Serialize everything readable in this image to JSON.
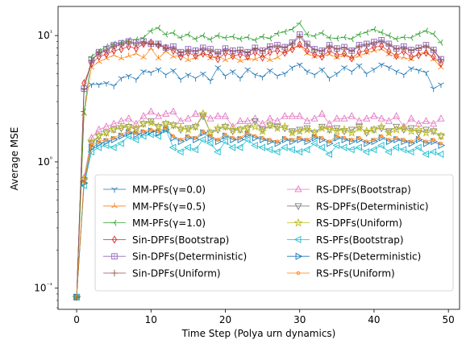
{
  "chart_data": {
    "type": "line",
    "title": "",
    "xlabel": "Time Step (Polya urn dynamics)",
    "ylabel": "Average MSE",
    "xlim": [
      -2.5,
      51.5
    ],
    "ylim": [
      0.068,
      17
    ],
    "yscale": "log",
    "grid": false,
    "legend_position": "lower-right",
    "x_ticks": [
      0,
      10,
      20,
      30,
      40,
      50
    ],
    "x_tick_labels": [
      "0",
      "10",
      "20",
      "30",
      "40",
      "50"
    ],
    "y_ticks": [
      0.1,
      1,
      10
    ],
    "y_tick_labels": [
      "10⁻¹",
      "10⁰",
      "10¹"
    ],
    "x": [
      0,
      1,
      2,
      3,
      4,
      5,
      6,
      7,
      8,
      9,
      10,
      11,
      12,
      13,
      14,
      15,
      16,
      17,
      18,
      19,
      20,
      21,
      22,
      23,
      24,
      25,
      26,
      27,
      28,
      29,
      30,
      31,
      32,
      33,
      34,
      35,
      36,
      37,
      38,
      39,
      40,
      41,
      42,
      43,
      44,
      45,
      46,
      47,
      48,
      49
    ],
    "series": [
      {
        "name": "MM-PFs(γ=0.0)",
        "color": "#1f77b4",
        "marker": "tri_down",
        "values": [
          0.085,
          3.7,
          4.1,
          4.1,
          4.2,
          4.0,
          4.6,
          4.8,
          4.5,
          5.2,
          5.1,
          5.4,
          4.9,
          5.3,
          4.5,
          4.9,
          4.6,
          5.0,
          4.4,
          5.6,
          4.8,
          5.2,
          4.6,
          5.4,
          4.9,
          4.7,
          5.3,
          4.8,
          5.0,
          5.6,
          5.9,
          5.2,
          4.9,
          5.4,
          4.6,
          5.0,
          5.6,
          5.2,
          5.8,
          5.0,
          5.4,
          5.9,
          5.6,
          5.2,
          4.9,
          5.5,
          5.3,
          5.1,
          3.8,
          4.1
        ]
      },
      {
        "name": "MM-PFs(γ=0.5)",
        "color": "#ff7f0e",
        "marker": "tri_up",
        "values": [
          0.085,
          2.4,
          5.6,
          6.2,
          6.6,
          7.0,
          6.6,
          6.9,
          7.2,
          6.7,
          7.9,
          6.6,
          7.5,
          6.8,
          7.0,
          6.4,
          6.7,
          7.2,
          6.6,
          6.9,
          6.4,
          6.8,
          6.3,
          6.6,
          6.5,
          6.9,
          6.4,
          6.7,
          7.4,
          8.0,
          8.3,
          7.2,
          6.8,
          6.9,
          7.1,
          6.7,
          7.0,
          6.6,
          6.9,
          7.3,
          7.6,
          7.8,
          7.1,
          6.8,
          6.7,
          6.5,
          7.2,
          7.4,
          6.5,
          5.6
        ]
      },
      {
        "name": "MM-PFs(γ=1.0)",
        "color": "#2ca02c",
        "marker": "tri_left",
        "values": [
          0.085,
          2.5,
          6.8,
          7.5,
          8.2,
          8.6,
          8.8,
          9.2,
          9.3,
          9.6,
          10.9,
          11.5,
          10.2,
          10.5,
          9.6,
          10.2,
          9.4,
          10.0,
          9.3,
          10.0,
          9.6,
          9.8,
          9.4,
          9.7,
          9.2,
          9.8,
          9.5,
          10.4,
          10.7,
          11.2,
          12.5,
          10.2,
          9.9,
          10.5,
          9.6,
          9.5,
          9.7,
          9.4,
          10.2,
          10.6,
          11.2,
          10.6,
          10.0,
          9.4,
          9.7,
          9.6,
          10.3,
          10.9,
          10.3,
          8.8
        ]
      },
      {
        "name": "Sin-DPFs(Bootstrap)",
        "color": "#d62728",
        "marker": "thin_diamond",
        "values": [
          0.085,
          4.2,
          6.0,
          6.8,
          7.1,
          7.6,
          7.8,
          8.2,
          7.9,
          8.6,
          8.8,
          8.4,
          8.0,
          7.6,
          6.8,
          7.3,
          6.9,
          7.2,
          7.0,
          6.5,
          7.3,
          6.9,
          7.1,
          6.8,
          7.4,
          6.7,
          7.4,
          7.6,
          7.3,
          7.8,
          8.5,
          7.6,
          7.1,
          6.8,
          7.6,
          7.0,
          7.2,
          6.6,
          7.4,
          7.6,
          8.1,
          8.3,
          7.5,
          6.9,
          7.5,
          6.8,
          7.0,
          7.3,
          6.8,
          6.0
        ]
      },
      {
        "name": "Sin-DPFs(Deterministic)",
        "color": "#9467bd",
        "marker": "square",
        "values": [
          0.085,
          3.8,
          6.4,
          7.4,
          7.8,
          8.4,
          8.7,
          9.0,
          8.8,
          9.0,
          8.6,
          8.6,
          8.0,
          8.2,
          7.4,
          7.8,
          7.6,
          8.0,
          7.8,
          7.4,
          7.9,
          7.6,
          7.7,
          7.4,
          8.0,
          7.6,
          8.2,
          8.4,
          8.1,
          8.8,
          10.2,
          8.6,
          7.8,
          7.6,
          8.4,
          7.9,
          8.1,
          7.6,
          8.4,
          8.6,
          8.9,
          9.2,
          8.6,
          7.9,
          8.2,
          7.7,
          8.0,
          8.4,
          7.7,
          6.5
        ]
      },
      {
        "name": "Sin-DPFs(Uniform)",
        "color": "#8c564b",
        "marker": "plus",
        "values": [
          0.085,
          3.8,
          6.3,
          7.3,
          7.6,
          8.2,
          8.5,
          8.8,
          8.6,
          8.8,
          8.5,
          8.5,
          7.9,
          8.0,
          7.3,
          7.6,
          7.5,
          7.8,
          7.6,
          7.2,
          7.7,
          7.5,
          7.6,
          7.3,
          7.9,
          7.5,
          8.1,
          8.2,
          8.0,
          8.6,
          9.8,
          8.4,
          7.7,
          7.5,
          8.2,
          7.8,
          8.0,
          7.5,
          8.2,
          8.4,
          8.7,
          9.0,
          8.4,
          7.8,
          8.0,
          7.6,
          7.9,
          8.2,
          7.6,
          6.4
        ]
      },
      {
        "name": "RS-DPFs(Bootstrap)",
        "color": "#e377c2",
        "marker": "triangle_up",
        "values": [
          0.085,
          0.75,
          1.55,
          1.8,
          1.9,
          2.0,
          2.1,
          2.2,
          2.0,
          2.3,
          2.5,
          2.3,
          2.4,
          2.5,
          2.1,
          2.2,
          2.4,
          2.4,
          2.2,
          2.3,
          2.3,
          1.9,
          2.1,
          2.1,
          2.2,
          2.0,
          2.2,
          2.1,
          2.3,
          2.3,
          2.3,
          2.1,
          2.2,
          2.4,
          2.0,
          2.2,
          2.2,
          2.3,
          2.1,
          2.2,
          2.3,
          2.2,
          2.1,
          2.3,
          1.9,
          2.2,
          2.0,
          2.1,
          2.0,
          2.2
        ]
      },
      {
        "name": "RS-DPFs(Deterministic)",
        "color": "#7f7f7f",
        "marker": "triangle_down",
        "values": [
          0.085,
          0.72,
          1.4,
          1.6,
          1.7,
          1.8,
          1.85,
          1.9,
          1.8,
          2.0,
          2.1,
          1.9,
          2.0,
          1.95,
          1.8,
          1.85,
          1.9,
          2.3,
          1.7,
          1.8,
          1.9,
          1.75,
          1.8,
          1.85,
          2.1,
          1.8,
          1.95,
          1.9,
          1.85,
          1.75,
          1.8,
          1.85,
          1.7,
          1.9,
          1.8,
          1.85,
          1.75,
          1.8,
          1.9,
          1.7,
          1.8,
          1.85,
          1.75,
          1.9,
          1.8,
          1.85,
          1.7,
          1.8,
          1.75,
          1.6
        ]
      },
      {
        "name": "RS-DPFs(Uniform)",
        "color": "#bcbd22",
        "marker": "star",
        "values": [
          0.085,
          0.72,
          1.45,
          1.6,
          1.7,
          1.8,
          1.9,
          1.9,
          1.85,
          2.0,
          2.05,
          1.9,
          2.0,
          1.95,
          1.85,
          1.8,
          1.9,
          2.4,
          1.7,
          1.85,
          1.9,
          1.8,
          1.8,
          1.85,
          1.9,
          1.75,
          1.95,
          1.85,
          1.9,
          1.7,
          1.75,
          1.8,
          1.7,
          1.85,
          1.8,
          1.75,
          1.8,
          1.7,
          1.85,
          1.75,
          1.8,
          1.9,
          1.7,
          1.8,
          1.85,
          1.75,
          1.8,
          1.7,
          1.75,
          1.6
        ]
      },
      {
        "name": "RS-PFs(Bootstrap)",
        "color": "#17becf",
        "marker": "triangle_left",
        "values": [
          0.085,
          0.65,
          1.2,
          1.3,
          1.35,
          1.3,
          1.4,
          1.6,
          1.5,
          1.6,
          1.65,
          1.6,
          1.8,
          1.3,
          1.2,
          1.3,
          1.25,
          1.5,
          1.4,
          1.2,
          1.45,
          1.3,
          1.3,
          1.5,
          1.35,
          1.3,
          1.25,
          1.2,
          1.3,
          1.25,
          1.2,
          1.25,
          1.4,
          1.3,
          1.15,
          1.35,
          1.3,
          1.25,
          1.3,
          1.2,
          1.25,
          1.35,
          1.2,
          1.3,
          1.25,
          1.2,
          1.3,
          1.15,
          1.2,
          1.15
        ]
      },
      {
        "name": "RS-PFs(Deterministic)",
        "color": "#1f77b4",
        "marker": "triangle_right",
        "values": [
          0.085,
          0.68,
          1.3,
          1.4,
          1.45,
          1.5,
          1.6,
          1.7,
          1.65,
          1.7,
          1.75,
          1.7,
          1.8,
          1.55,
          1.45,
          1.55,
          1.5,
          1.7,
          1.55,
          1.45,
          1.6,
          1.5,
          1.5,
          1.65,
          1.55,
          1.5,
          1.45,
          1.4,
          1.5,
          1.45,
          1.5,
          1.45,
          1.55,
          1.5,
          1.4,
          1.55,
          1.5,
          1.45,
          1.5,
          1.4,
          1.45,
          1.55,
          1.45,
          1.5,
          1.45,
          1.4,
          1.5,
          1.4,
          1.45,
          1.35
        ]
      },
      {
        "name": "RS-PFs(Uniform)",
        "color": "#ff7f0e",
        "marker": "point",
        "values": [
          0.085,
          0.7,
          1.35,
          1.45,
          1.5,
          1.55,
          1.65,
          1.75,
          1.7,
          1.75,
          1.8,
          1.75,
          1.85,
          1.6,
          1.5,
          1.6,
          1.55,
          1.75,
          1.6,
          1.5,
          1.65,
          1.55,
          1.55,
          1.7,
          1.6,
          1.55,
          1.5,
          1.45,
          1.55,
          1.5,
          1.55,
          1.5,
          1.6,
          1.55,
          1.45,
          1.6,
          1.55,
          1.5,
          1.55,
          1.45,
          1.5,
          1.6,
          1.5,
          1.55,
          1.5,
          1.45,
          1.55,
          1.45,
          1.5,
          1.4
        ]
      }
    ]
  }
}
